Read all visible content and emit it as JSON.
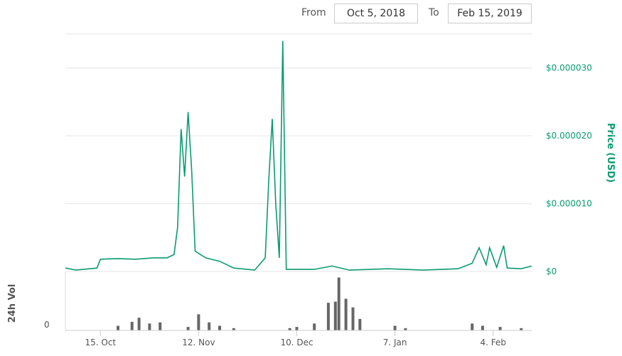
{
  "range_selector": {
    "from_label": "From",
    "from_value": "Oct 5, 2018",
    "to_label": "To",
    "to_value": "Feb 15, 2019"
  },
  "colors": {
    "price_line": "#0b9b70",
    "volume_bars": "#666666",
    "grid": "#e6e6e6",
    "axis_text": "#555555"
  },
  "chart_data": [
    {
      "type": "line",
      "series": [
        {
          "name": "Price (USD)"
        }
      ],
      "ylabel": "Price (USD)",
      "y_ticks": [
        "$0",
        "$0.000010",
        "$0.000020",
        "$0.000030"
      ],
      "y_tick_values": [
        0,
        1e-05,
        2e-05,
        3e-05
      ],
      "ylim": [
        0,
        3.5e-05
      ],
      "xlim": [
        "2018-10-05",
        "2019-02-15"
      ],
      "grid": true,
      "points": [
        [
          "2018-10-05",
          5e-07
        ],
        [
          "2018-10-08",
          2e-07
        ],
        [
          "2018-10-12",
          4e-07
        ],
        [
          "2018-10-14",
          5e-07
        ],
        [
          "2018-10-15",
          1.8e-06
        ],
        [
          "2018-10-20",
          1.9e-06
        ],
        [
          "2018-10-25",
          1.8e-06
        ],
        [
          "2018-10-30",
          2e-06
        ],
        [
          "2018-11-03",
          2e-06
        ],
        [
          "2018-11-05",
          2.5e-06
        ],
        [
          "2018-11-06",
          6.5e-06
        ],
        [
          "2018-11-07",
          2.1e-05
        ],
        [
          "2018-11-08",
          1.4e-05
        ],
        [
          "2018-11-09",
          2.35e-05
        ],
        [
          "2018-11-10",
          1.5e-05
        ],
        [
          "2018-11-11",
          3e-06
        ],
        [
          "2018-11-14",
          2e-06
        ],
        [
          "2018-11-18",
          1.5e-06
        ],
        [
          "2018-11-22",
          5e-07
        ],
        [
          "2018-11-28",
          2e-07
        ],
        [
          "2018-12-01",
          2e-06
        ],
        [
          "2018-12-02",
          1.35e-05
        ],
        [
          "2018-12-03",
          2.25e-05
        ],
        [
          "2018-12-04",
          1e-05
        ],
        [
          "2018-12-05",
          2e-06
        ],
        [
          "2018-12-06",
          3.4e-05
        ],
        [
          "2018-12-07",
          3e-07
        ],
        [
          "2018-12-15",
          3e-07
        ],
        [
          "2018-12-20",
          8e-07
        ],
        [
          "2018-12-25",
          2e-07
        ],
        [
          "2019-01-05",
          4e-07
        ],
        [
          "2019-01-15",
          2e-07
        ],
        [
          "2019-01-25",
          4e-07
        ],
        [
          "2019-01-29",
          1.2e-06
        ],
        [
          "2019-01-31",
          3.5e-06
        ],
        [
          "2019-02-02",
          1e-06
        ],
        [
          "2019-02-03",
          3.5e-06
        ],
        [
          "2019-02-05",
          6e-07
        ],
        [
          "2019-02-07",
          3.8e-06
        ],
        [
          "2019-02-08",
          5e-07
        ],
        [
          "2019-02-12",
          4e-07
        ],
        [
          "2019-02-15",
          8e-07
        ]
      ]
    },
    {
      "type": "bar",
      "series": [
        {
          "name": "24h Vol"
        }
      ],
      "ylabel": "24h Vol",
      "y_ticks": [
        "0"
      ],
      "x_ticks": [
        "15. Oct",
        "12. Nov",
        "10. Dec",
        "7. Jan",
        "4. Feb"
      ],
      "x_tick_dates": [
        "2018-10-15",
        "2018-11-12",
        "2018-12-10",
        "2019-01-07",
        "2019-02-04"
      ],
      "note_scale": "relative",
      "values": [
        [
          "2018-10-20",
          0.08
        ],
        [
          "2018-10-24",
          0.15
        ],
        [
          "2018-10-26",
          0.22
        ],
        [
          "2018-10-29",
          0.12
        ],
        [
          "2018-11-01",
          0.14
        ],
        [
          "2018-11-09",
          0.06
        ],
        [
          "2018-11-12",
          0.28
        ],
        [
          "2018-11-15",
          0.14
        ],
        [
          "2018-11-18",
          0.08
        ],
        [
          "2018-11-22",
          0.04
        ],
        [
          "2018-12-08",
          0.04
        ],
        [
          "2018-12-10",
          0.06
        ],
        [
          "2018-12-15",
          0.12
        ],
        [
          "2018-12-19",
          0.48
        ],
        [
          "2018-12-21",
          0.5
        ],
        [
          "2018-12-22",
          0.92
        ],
        [
          "2018-12-24",
          0.55
        ],
        [
          "2018-12-26",
          0.4
        ],
        [
          "2018-12-28",
          0.2
        ],
        [
          "2019-01-07",
          0.08
        ],
        [
          "2019-01-10",
          0.04
        ],
        [
          "2019-01-29",
          0.12
        ],
        [
          "2019-02-01",
          0.08
        ],
        [
          "2019-02-06",
          0.06
        ],
        [
          "2019-02-12",
          0.04
        ]
      ]
    }
  ]
}
